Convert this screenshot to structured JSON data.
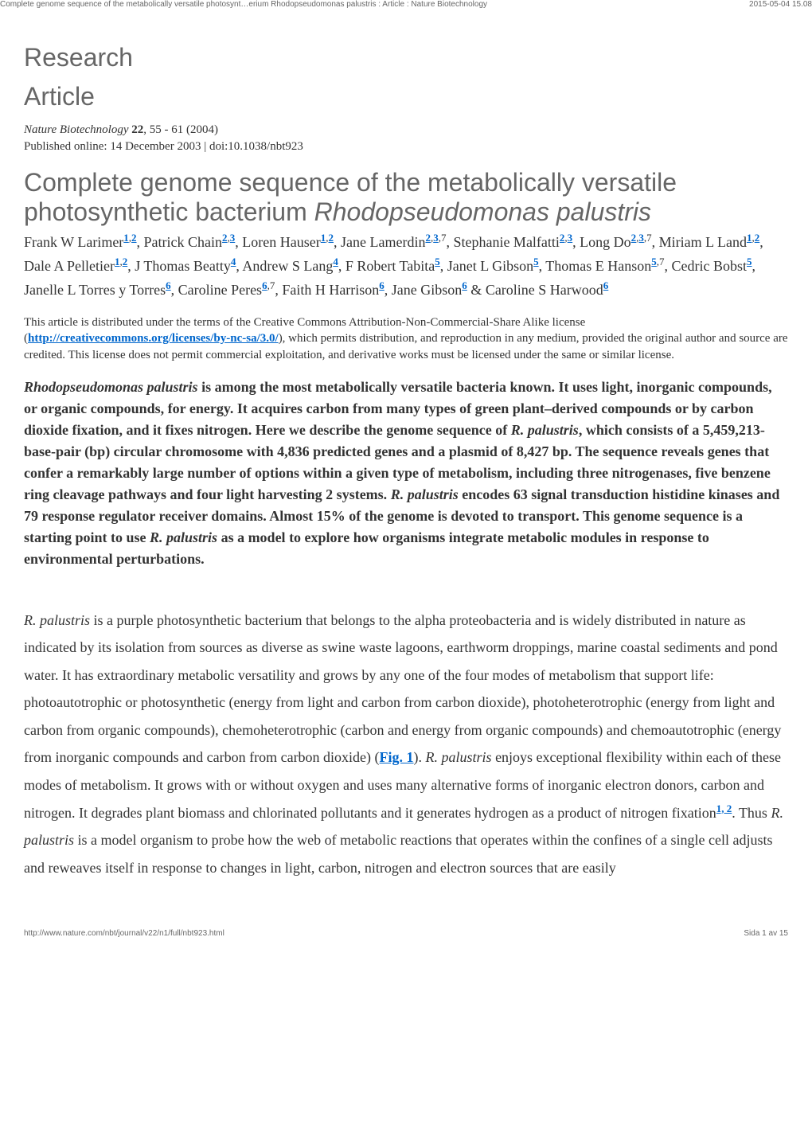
{
  "header": {
    "left": "Complete genome sequence of the metabolically versatile photosynt…erium Rhodopseudomonas palustris : Article : Nature Biotechnology",
    "right": "2015-05-04 15.08"
  },
  "section": {
    "line1": "Research",
    "line2": "Article"
  },
  "journal": {
    "name": "Nature Biotechnology",
    "volume": "22",
    "pages": ", 55 - 61 (2004)",
    "published": "Published online: 14 December 2003 | doi:10.1038/nbt923"
  },
  "title": {
    "plain": "Complete genome sequence of the metabolically versatile photosynthetic bacterium ",
    "species": "Rhodopseudomonas palustris"
  },
  "authors": [
    {
      "name": "Frank W Larimer",
      "affs": [
        "1",
        "2"
      ]
    },
    {
      "name": "Patrick Chain",
      "affs": [
        "2",
        "3"
      ]
    },
    {
      "name": "Loren Hauser",
      "affs": [
        "1",
        "2"
      ]
    },
    {
      "name": "Jane Lamerdin",
      "affs": [
        "2",
        "3",
        "7"
      ]
    },
    {
      "name": "Stephanie Malfatti",
      "affs": [
        "2",
        "3"
      ]
    },
    {
      "name": "Long Do",
      "affs": [
        "2",
        "3",
        "7"
      ]
    },
    {
      "name": "Miriam L Land",
      "affs": [
        "1",
        "2"
      ]
    },
    {
      "name": "Dale A Pelletier",
      "affs": [
        "1",
        "2"
      ]
    },
    {
      "name": "J Thomas Beatty",
      "affs": [
        "4"
      ]
    },
    {
      "name": "Andrew S Lang",
      "affs": [
        "4"
      ]
    },
    {
      "name": "F Robert Tabita",
      "affs": [
        "5"
      ]
    },
    {
      "name": "Janet L Gibson",
      "affs": [
        "5"
      ]
    },
    {
      "name": "Thomas E Hanson",
      "affs": [
        "5",
        "7"
      ]
    },
    {
      "name": "Cedric Bobst",
      "affs": [
        "5"
      ]
    },
    {
      "name": "Janelle L Torres y Torres",
      "affs": [
        "6"
      ]
    },
    {
      "name": "Caroline Peres",
      "affs": [
        "6",
        "7"
      ]
    },
    {
      "name": "Faith H Harrison",
      "affs": [
        "6"
      ]
    },
    {
      "name": "Jane Gibson",
      "affs": [
        "6"
      ]
    },
    {
      "name": "Caroline S Harwood",
      "affs": [
        "6"
      ]
    }
  ],
  "aff_linked": [
    "1",
    "2",
    "3",
    "4",
    "5",
    "6"
  ],
  "license": {
    "pre": "This article is distributed under the terms of the Creative Commons Attribution-Non-Commercial-Share Alike license (",
    "url": "http://creativecommons.org/licenses/by-nc-sa/3.0/",
    "post": "), which permits distribution, and reproduction in any medium, provided the original author and source are credited. This license does not permit commercial exploitation, and derivative works must be licensed under the same or similar license."
  },
  "abstract": {
    "species": "Rhodopseudomonas palustris",
    "t1": " is among the most metabolically versatile bacteria known. It uses light, inorganic compounds, or organic compounds, for energy. It acquires carbon from many types of green plant–derived compounds or by carbon dioxide fixation, and it fixes nitrogen. Here we describe the genome sequence of ",
    "sp2": "R. palustris",
    "t2": ", which consists of a 5,459,213-base-pair (bp) circular chromosome with 4,836 predicted genes and a plasmid of 8,427 bp. The sequence reveals genes that confer a remarkably large number of options within a given type of metabolism, including three nitrogenases, five benzene ring cleavage pathways and four light harvesting 2 systems. ",
    "sp3": "R. palustris",
    "t3": " encodes 63 signal transduction histidine kinases and 79 response regulator receiver domains. Almost 15% of the genome is devoted to transport. This genome sequence is a starting point to use ",
    "sp4": "R. palustris",
    "t4": " as a model to explore how organisms integrate metabolic modules in response to environmental perturbations."
  },
  "body": {
    "sp1": "R. palustris",
    "t1": " is a purple photosynthetic bacterium that belongs to the alpha proteobacteria and is widely distributed in nature as indicated by its isolation from sources as diverse as swine waste lagoons, earthworm droppings, marine coastal sediments and pond water. It has extraordinary metabolic versatility and grows by any one of the four modes of metabolism that support life: photoautotrophic or photosynthetic (energy from light and carbon from carbon dioxide), photoheterotrophic (energy from light and carbon from organic compounds), chemoheterotrophic (carbon and energy from organic compounds) and chemoautotrophic (energy from inorganic compounds and carbon from carbon dioxide) (",
    "fig": "Fig. 1",
    "t2": "). ",
    "sp2": "R. palustris",
    "t3": " enjoys exceptional flexibility within each of these modes of metabolism. It grows with or without oxygen and uses many alternative forms of inorganic electron donors, carbon and nitrogen. It degrades plant biomass and chlorinated pollutants and it generates hydrogen as a product of nitrogen fixation",
    "cite": "1, 2",
    "t4": ". Thus ",
    "sp3": "R. palustris",
    "t5": " is a model organism to probe how the web of metabolic reactions that operates within the confines of a single cell adjusts and reweaves itself in response to changes in light, carbon, nitrogen and electron sources that are easily"
  },
  "footer": {
    "left": "http://www.nature.com/nbt/journal/v22/n1/full/nbt923.html",
    "right": "Sida 1 av 15"
  }
}
